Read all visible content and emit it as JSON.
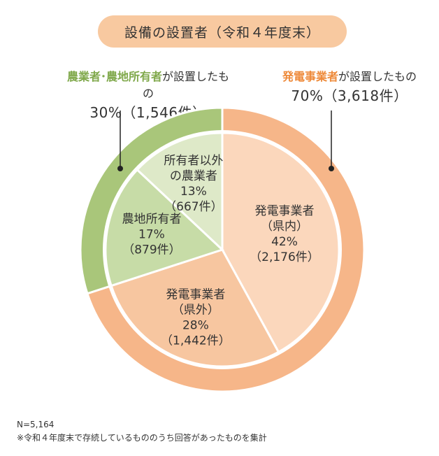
{
  "title": "設備の設置者（令和４年度末）",
  "callouts": {
    "left": {
      "accent": "農業者･農地所有者",
      "rest": "が設置したもの",
      "value": "30%（1,546件）"
    },
    "right": {
      "accent": "発電事業者",
      "rest": "が設置したもの",
      "value": "70%（3,618件）"
    }
  },
  "footnotes": {
    "n": "N=5,164",
    "note": "※令和４年度末で存続しているもののうち回答があったものを集計"
  },
  "chart_data": {
    "type": "pie",
    "outer_ring": [
      {
        "name": "発電事業者",
        "percent": 70,
        "count": 3618,
        "color": "#f6b689"
      },
      {
        "name": "農業者･農地所有者",
        "percent": 30,
        "count": 1546,
        "color": "#a9c67a"
      }
    ],
    "slices": [
      {
        "lines": [
          "発電事業者",
          "（県内）",
          "42%",
          "（2,176件）"
        ],
        "percent": 42,
        "color": "#fbd7bc"
      },
      {
        "lines": [
          "発電事業者",
          "（県外）",
          "28%",
          "（1,442件）"
        ],
        "percent": 28,
        "color": "#f7c6a0"
      },
      {
        "lines": [
          "農地所有者",
          "17%",
          "（879件）"
        ],
        "percent": 17,
        "color": "#c7dca7"
      },
      {
        "lines": [
          "所有者以外",
          "の農業者",
          "13%",
          "（667件）"
        ],
        "percent": 13,
        "color": "#dee9c8"
      }
    ]
  }
}
